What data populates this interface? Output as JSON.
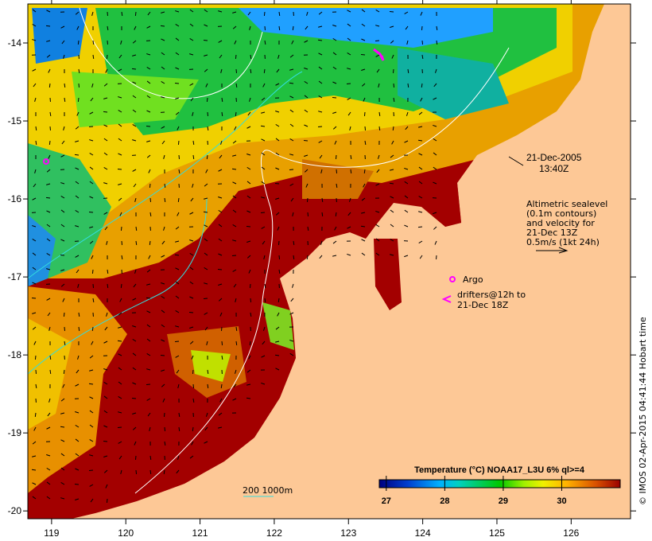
{
  "map": {
    "lon_ticks": [
      {
        "v": 119,
        "label": "119"
      },
      {
        "v": 120,
        "label": "120"
      },
      {
        "v": 121,
        "label": "121"
      },
      {
        "v": 122,
        "label": "122"
      },
      {
        "v": 123,
        "label": "123"
      },
      {
        "v": 124,
        "label": "124"
      },
      {
        "v": 125,
        "label": "125"
      },
      {
        "v": 126,
        "label": "126"
      }
    ],
    "lat_ticks": [
      {
        "v": -14,
        "label": "-14"
      },
      {
        "v": -15,
        "label": "-15"
      },
      {
        "v": -16,
        "label": "-16"
      },
      {
        "v": -17,
        "label": "-17"
      },
      {
        "v": -18,
        "label": "-18"
      },
      {
        "v": -19,
        "label": "-19"
      },
      {
        "v": -20,
        "label": "-20"
      }
    ],
    "lon_range": [
      118.68,
      126.8
    ],
    "lat_range": [
      -13.5,
      -20.1
    ],
    "colors": {
      "land": "#fdc896",
      "ocean_warm": "#a30000",
      "contour_sealevel": "#ffffff",
      "isobath_200": "#33dddd",
      "marker": "#ff00ff"
    }
  },
  "annotations": {
    "date": "21-Dec-2005",
    "time": "13:40Z",
    "altimetry_lines": [
      "Altimetric sealevel",
      "(0.1m contours)",
      "and velocity for",
      "21-Dec 13Z",
      "0.5m/s (1kt 24h)"
    ],
    "argo_label": "Argo",
    "drifters_lines": [
      "drifters@12h to",
      "21-Dec 18Z"
    ],
    "isobath_label": "200  1000m",
    "credit": "© IMOS 02-Apr-2015 04:41:44 Hobart time"
  },
  "colorbar": {
    "title": "Temperature (°C) NOAA17_L3U 6% ql>=4",
    "range": [
      26.88,
      31.0
    ],
    "ticks": [
      {
        "v": 27,
        "label": "27"
      },
      {
        "v": 28,
        "label": "28"
      },
      {
        "v": 29,
        "label": "29"
      },
      {
        "v": 30,
        "label": "30"
      }
    ]
  }
}
